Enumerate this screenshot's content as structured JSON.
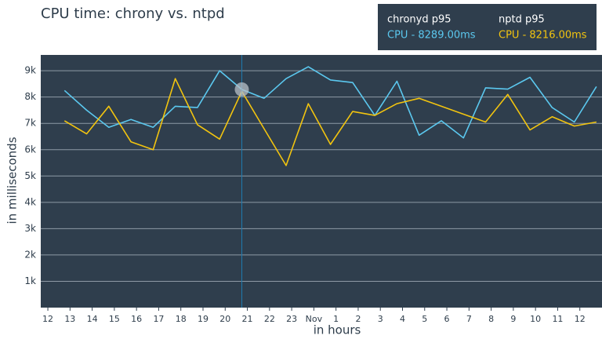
{
  "chart_data": {
    "type": "line",
    "title": "CPU time: chrony vs. ntpd",
    "x_label": "in hours",
    "y_label": "in milliseconds",
    "x": [
      0.75,
      1.75,
      2.75,
      3.75,
      4.75,
      5.75,
      6.75,
      7.75,
      8.75,
      9.75,
      10.75,
      11.75,
      12.75,
      13.75,
      14.75,
      15.75,
      16.75,
      17.75,
      18.75,
      19.75,
      20.75,
      21.75,
      22.75,
      23.75,
      24.75
    ],
    "xlim": [
      -0.32,
      25
    ],
    "xticks": [
      {
        "value": 0,
        "label": "12"
      },
      {
        "value": 1,
        "label": "13"
      },
      {
        "value": 2,
        "label": "14"
      },
      {
        "value": 3,
        "label": "15"
      },
      {
        "value": 4,
        "label": "16"
      },
      {
        "value": 5,
        "label": "17"
      },
      {
        "value": 6,
        "label": "18"
      },
      {
        "value": 7,
        "label": "19"
      },
      {
        "value": 8,
        "label": "20"
      },
      {
        "value": 9,
        "label": "21"
      },
      {
        "value": 10,
        "label": "22"
      },
      {
        "value": 11,
        "label": "23"
      },
      {
        "value": 12,
        "label": "Nov"
      },
      {
        "value": 13,
        "label": "1"
      },
      {
        "value": 14,
        "label": "2"
      },
      {
        "value": 15,
        "label": "3"
      },
      {
        "value": 16,
        "label": "4"
      },
      {
        "value": 17,
        "label": "5"
      },
      {
        "value": 18,
        "label": "6"
      },
      {
        "value": 19,
        "label": "7"
      },
      {
        "value": 20,
        "label": "8"
      },
      {
        "value": 21,
        "label": "9"
      },
      {
        "value": 22,
        "label": "10"
      },
      {
        "value": 23,
        "label": "11"
      },
      {
        "value": 24,
        "label": "12"
      }
    ],
    "ylim": [
      0,
      9600
    ],
    "yticks": [
      {
        "value": 1000,
        "label": "1k"
      },
      {
        "value": 2000,
        "label": "2k"
      },
      {
        "value": 3000,
        "label": "3k"
      },
      {
        "value": 4000,
        "label": "4k"
      },
      {
        "value": 5000,
        "label": "5k"
      },
      {
        "value": 6000,
        "label": "6k"
      },
      {
        "value": 7000,
        "label": "7k"
      },
      {
        "value": 8000,
        "label": "8k"
      },
      {
        "value": 9000,
        "label": "9k"
      }
    ],
    "grid": true,
    "series": [
      {
        "name": "chronyd p95",
        "color": "#5bc8ef",
        "values": [
          8250,
          7500,
          6850,
          7150,
          6850,
          7650,
          7600,
          9000,
          8289,
          7950,
          8700,
          9150,
          8650,
          8550,
          7300,
          8600,
          6550,
          7100,
          6450,
          8350,
          8300,
          8750,
          7600,
          7050,
          8400
        ]
      },
      {
        "name": "nptd p95",
        "color": "#f2c40f",
        "values": [
          7100,
          6600,
          7650,
          6300,
          6000,
          8700,
          6950,
          6400,
          8216,
          6800,
          5400,
          7750,
          6200,
          7450,
          7300,
          7750,
          7950,
          7650,
          7350,
          7050,
          8100,
          6750,
          7250,
          6900,
          7050
        ]
      }
    ],
    "hover": {
      "index": 8,
      "labels": [
        "CPU - 8289.00ms",
        "CPU - 8216.00ms"
      ]
    }
  }
}
